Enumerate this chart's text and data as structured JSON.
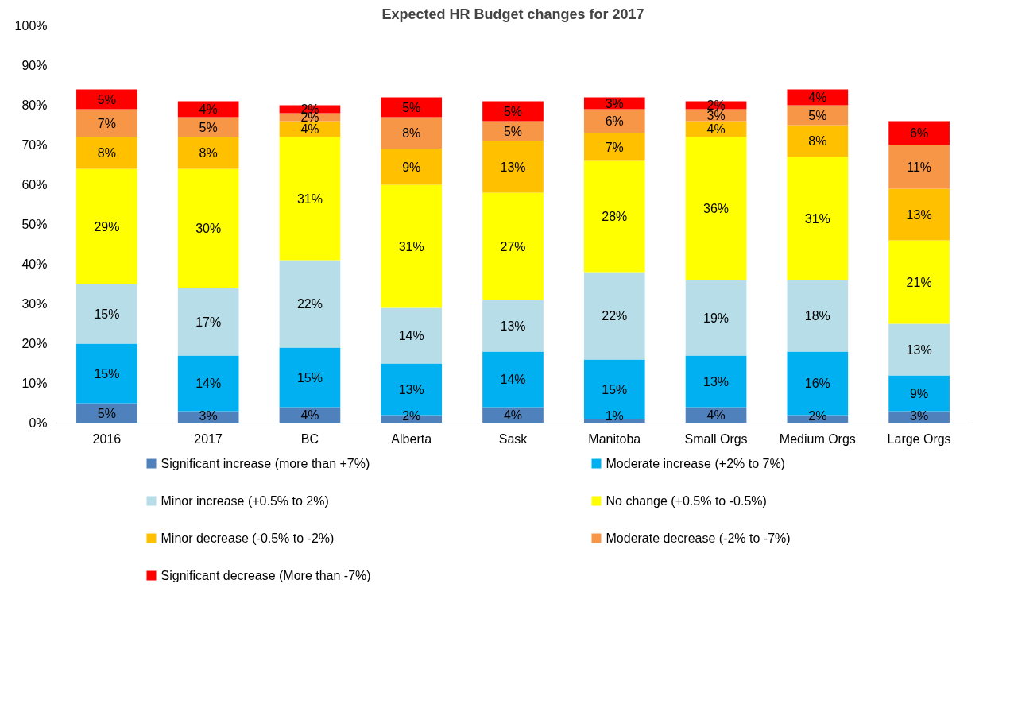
{
  "chart_data": {
    "type": "bar",
    "title": "Expected HR Budget changes for 2017",
    "stacked": true,
    "grid": false,
    "legend": "bottom",
    "categories": [
      "2016",
      "2017",
      "BC",
      "Alberta",
      "Sask",
      "Manitoba",
      "Small Orgs",
      "Medium Orgs",
      "Large Orgs"
    ],
    "ylim": [
      0,
      100
    ],
    "yticks": [
      {
        "value": 0,
        "label": "0%"
      },
      {
        "value": 10,
        "label": "10%"
      },
      {
        "value": 20,
        "label": "20%"
      },
      {
        "value": 30,
        "label": "30%"
      },
      {
        "value": 40,
        "label": "40%"
      },
      {
        "value": 50,
        "label": "50%"
      },
      {
        "value": 60,
        "label": "60%"
      },
      {
        "value": 70,
        "label": "70%"
      },
      {
        "value": 80,
        "label": "80%"
      },
      {
        "value": 90,
        "label": "90%"
      },
      {
        "value": 100,
        "label": "100%"
      }
    ],
    "series": [
      {
        "name": "Significant increase (more than +7%)",
        "color": "#4f81bd",
        "values": [
          5,
          3,
          4,
          2,
          4,
          1,
          4,
          2,
          3
        ],
        "value_labels": [
          "5%",
          "3%",
          "4%",
          "2%",
          "4%",
          "1%",
          "4%",
          "2%",
          "3%"
        ]
      },
      {
        "name": "Moderate increase (+2% to 7%)",
        "color": "#00b0f0",
        "values": [
          15,
          14,
          15,
          13,
          14,
          15,
          13,
          16,
          9
        ],
        "value_labels": [
          "15%",
          "14%",
          "15%",
          "13%",
          "14%",
          "15%",
          "13%",
          "16%",
          "9%"
        ]
      },
      {
        "name": "Minor increase (+0.5% to 2%)",
        "color": "#b7dde8",
        "values": [
          15,
          17,
          22,
          14,
          13,
          22,
          19,
          18,
          13
        ],
        "value_labels": [
          "15%",
          "17%",
          "22%",
          "14%",
          "13%",
          "22%",
          "19%",
          "18%",
          "13%"
        ]
      },
      {
        "name": "No change (+0.5% to -0.5%)",
        "color": "#ffff00",
        "values": [
          29,
          30,
          31,
          31,
          27,
          28,
          36,
          31,
          21
        ],
        "value_labels": [
          "29%",
          "30%",
          "31%",
          "31%",
          "27%",
          "28%",
          "36%",
          "31%",
          "21%"
        ]
      },
      {
        "name": "Minor decrease (-0.5% to -2%)",
        "color": "#ffc000",
        "values": [
          8,
          8,
          4,
          9,
          13,
          7,
          4,
          8,
          13
        ],
        "value_labels": [
          "8%",
          "8%",
          "4%",
          "9%",
          "13%",
          "7%",
          "4%",
          "8%",
          "13%"
        ]
      },
      {
        "name": "Moderate decrease (-2% to -7%)",
        "color": "#f79646",
        "values": [
          7,
          5,
          2,
          8,
          5,
          6,
          3,
          5,
          11
        ],
        "value_labels": [
          "7%",
          "5%",
          "2%",
          "8%",
          "5%",
          "6%",
          "3%",
          "5%",
          "11%"
        ]
      },
      {
        "name": "Significant decrease (More than -7%)",
        "color": "#ff0000",
        "values": [
          5,
          4,
          2,
          5,
          5,
          3,
          2,
          4,
          6
        ],
        "value_labels": [
          "5%",
          "4%",
          "2%",
          "5%",
          "5%",
          "3%",
          "2%",
          "4%",
          "6%"
        ]
      }
    ]
  }
}
